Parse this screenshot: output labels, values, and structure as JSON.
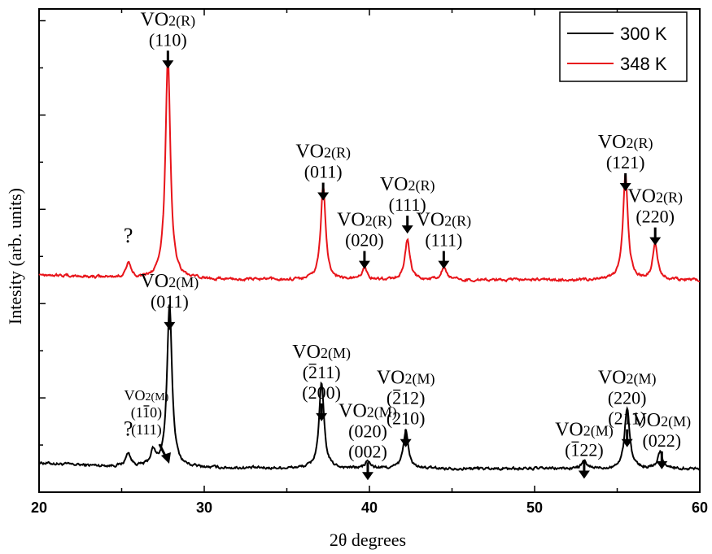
{
  "chart_data": {
    "type": "line",
    "title": "",
    "xlabel": "2θ degrees",
    "ylabel": "Intesity (arb. units)",
    "xlim": [
      20,
      60
    ],
    "x_ticks": [
      20,
      30,
      40,
      50,
      60
    ],
    "y_ticks_labeled": false,
    "legend": {
      "placement": "top-right"
    },
    "series": [
      {
        "name": "300 K",
        "color": "#000000",
        "baseline": 1.0,
        "peaks": [
          {
            "x": 25.4,
            "y": 0.55
          },
          {
            "x": 26.9,
            "y": 0.6
          },
          {
            "x": 27.9,
            "y": 6.9
          },
          {
            "x": 37.1,
            "y": 3.6
          },
          {
            "x": 39.9,
            "y": 0.3
          },
          {
            "x": 42.2,
            "y": 1.6
          },
          {
            "x": 53.0,
            "y": 0.3
          },
          {
            "x": 55.6,
            "y": 2.6
          },
          {
            "x": 57.6,
            "y": 0.7
          }
        ]
      },
      {
        "name": "348 K",
        "color": "#e8141a",
        "baseline": 9.0,
        "peaks": [
          {
            "x": 25.4,
            "y": 0.6
          },
          {
            "x": 27.8,
            "y": 9.4
          },
          {
            "x": 37.2,
            "y": 3.9
          },
          {
            "x": 39.7,
            "y": 0.5
          },
          {
            "x": 42.3,
            "y": 1.7
          },
          {
            "x": 44.5,
            "y": 0.5
          },
          {
            "x": 55.5,
            "y": 4.4
          },
          {
            "x": 57.3,
            "y": 1.5
          }
        ]
      }
    ],
    "annotations": [
      {
        "id": "r1",
        "x": 27.8,
        "y": 19.8,
        "lines": [
          "VO",
          "2(R)",
          "(110)"
        ],
        "arrow": "down",
        "size": "large"
      },
      {
        "id": "r2",
        "x": 37.2,
        "y": 14.2,
        "lines": [
          "VO",
          "2(R)",
          "(011)"
        ],
        "arrow": "down",
        "size": "large"
      },
      {
        "id": "r3",
        "x": 39.7,
        "y": 11.3,
        "lines": [
          "VO",
          "2(R)",
          "(020)"
        ],
        "arrow": "down",
        "size": "large"
      },
      {
        "id": "r4",
        "x": 42.3,
        "y": 12.8,
        "lines": [
          "VO",
          "2(R)",
          "(111)"
        ],
        "arrow": "down",
        "size": "large"
      },
      {
        "id": "r5",
        "x": 44.5,
        "y": 11.3,
        "lines": [
          "VO",
          "2(R)",
          "(111)"
        ],
        "arrow": "down",
        "size": "large"
      },
      {
        "id": "r6",
        "x": 55.5,
        "y": 14.6,
        "lines": [
          "VO",
          "2(R)",
          "(121)"
        ],
        "arrow": "down",
        "size": "large"
      },
      {
        "id": "r7",
        "x": 57.3,
        "y": 12.3,
        "lines": [
          "VO",
          "2(R)",
          "(220)"
        ],
        "arrow": "down",
        "size": "large"
      },
      {
        "id": "m1",
        "x": 27.9,
        "y": 8.7,
        "lines": [
          "VO",
          "2(M)",
          "(011)"
        ],
        "arrow": "down",
        "size": "large"
      },
      {
        "id": "m2",
        "x": 37.1,
        "y": 5.7,
        "lines": [
          "VO",
          "2(M)",
          "(211)",
          "(200)"
        ],
        "bar_index": 1,
        "arrow": "down",
        "size": "large"
      },
      {
        "id": "m3",
        "x": 39.9,
        "y": 3.2,
        "lines": [
          "VO",
          "2(M)",
          "(020)",
          "(002)"
        ],
        "arrow": "down",
        "size": "large"
      },
      {
        "id": "m4",
        "x": 42.2,
        "y": 4.6,
        "lines": [
          "VO",
          "2(M)",
          "(212)",
          "(210)"
        ],
        "bar_index": 1,
        "arrow": "down",
        "size": "large"
      },
      {
        "id": "m5",
        "x": 26.5,
        "y": 3.9,
        "lines": [
          "VO",
          "2(M)",
          "(110)",
          "(111)"
        ],
        "bar_index": 2,
        "arrow": "diag",
        "size": "small"
      },
      {
        "id": "m6",
        "x": 53.0,
        "y": 2.4,
        "lines": [
          "VO",
          "2(M)",
          "(122)"
        ],
        "bar_index": 1,
        "arrow": "down",
        "size": "large"
      },
      {
        "id": "m7",
        "x": 55.6,
        "y": 4.6,
        "lines": [
          "VO",
          "2(M)",
          "(220)",
          "(211)"
        ],
        "arrow": "down",
        "size": "large"
      },
      {
        "id": "m8",
        "x": 57.7,
        "y": 2.8,
        "lines": [
          "VO",
          "2(M)",
          "(022)"
        ],
        "arrow": "down",
        "size": "large"
      }
    ],
    "question_marks": [
      {
        "text": "?",
        "x": 25.4,
        "y": 10.6
      },
      {
        "text": "?",
        "x": 25.4,
        "y": 2.4
      }
    ]
  }
}
